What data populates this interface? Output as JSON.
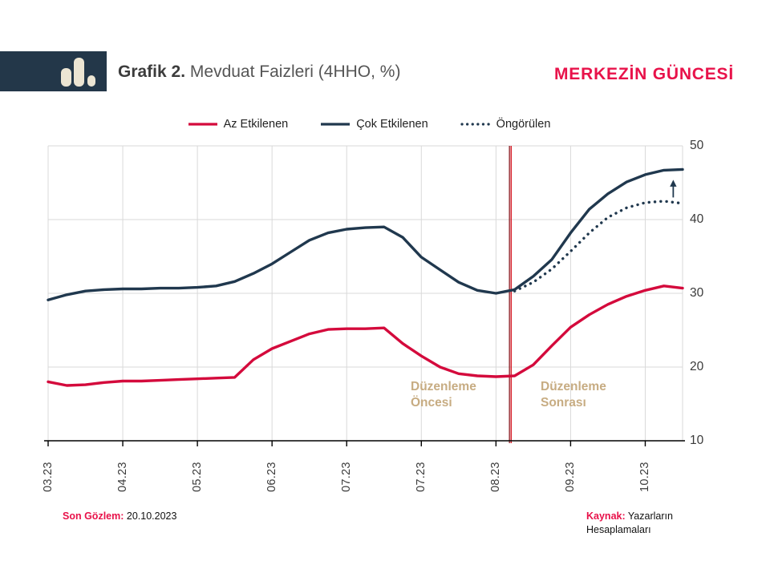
{
  "header": {
    "title_prefix": "Grafik 2.",
    "title_rest": "Mevduat Faizleri (4HHO, %)",
    "brand": "MERKEZİN GÜNCESİ",
    "brand_color": "#e8124a",
    "logo_icon": "bar-chart-icon",
    "logo_block_color": "#233749",
    "logo_icon_color": "#ece5d3"
  },
  "legend": {
    "items": [
      {
        "label": "Az Etkilenen",
        "swatch": "solid-red-line"
      },
      {
        "label": "Çok Etkilenen",
        "swatch": "solid-navy-line"
      },
      {
        "label": "Öngörülen",
        "swatch": "dotted-navy-line"
      }
    ]
  },
  "annotations": {
    "pre_label": "Düzenleme\nÖncesi",
    "post_label": "Düzenleme\nSonrası",
    "label_color": "#c7ac82"
  },
  "footer": {
    "last_obs_label": "Son Gözlem:",
    "last_obs_value": "20.10.2023",
    "source_label": "Kaynak:",
    "source_value": "Yazarların Hesaplamaları"
  },
  "chart_data": {
    "type": "line",
    "title": "Grafik 2. Mevduat Faizleri (4HHO, %)",
    "x_unit": "week",
    "x_tick_labels": [
      "03.23",
      "04.23",
      "05.23",
      "06.23",
      "07.23",
      "07.23",
      "08.23",
      "09.23",
      "10.23"
    ],
    "x_tick_weeks": [
      0,
      4,
      8,
      12,
      16,
      20,
      24,
      28,
      32
    ],
    "x_range_weeks": [
      0,
      34
    ],
    "ylim": [
      10,
      50
    ],
    "y_ticks": [
      10,
      20,
      30,
      40,
      50
    ],
    "grid": true,
    "legend_position": "top-center",
    "y_axis_side": "right",
    "series": [
      {
        "name": "Az Etkilenen",
        "style": "solid",
        "color": "#d40a3c",
        "start_week": 0,
        "values": [
          18.0,
          17.5,
          17.6,
          17.9,
          18.1,
          18.1,
          18.2,
          18.3,
          18.4,
          18.5,
          18.6,
          21.0,
          22.5,
          23.5,
          24.5,
          25.1,
          25.2,
          25.2,
          25.3,
          23.2,
          21.5,
          20.0,
          19.1,
          18.8,
          18.7,
          18.8,
          20.3,
          22.9,
          25.4,
          27.1,
          28.5,
          29.6,
          30.4,
          31.0,
          30.7
        ]
      },
      {
        "name": "Çok Etkilenen",
        "style": "solid",
        "color": "#20384e",
        "start_week": 0,
        "values": [
          29.1,
          29.8,
          30.3,
          30.5,
          30.6,
          30.6,
          30.7,
          30.7,
          30.8,
          31.0,
          31.6,
          32.7,
          34.0,
          35.6,
          37.2,
          38.2,
          38.7,
          38.9,
          39.0,
          37.6,
          34.9,
          33.2,
          31.5,
          30.4,
          30.0,
          30.5,
          32.3,
          34.6,
          38.2,
          41.4,
          43.5,
          45.1,
          46.1,
          46.7,
          46.8
        ]
      },
      {
        "name": "Öngörülen",
        "style": "dotted",
        "color": "#20384e",
        "start_week": 25,
        "values": [
          30.3,
          31.5,
          33.3,
          35.7,
          38.2,
          40.3,
          41.6,
          42.3,
          42.5,
          42.2
        ]
      }
    ],
    "vline": {
      "week": 24.77,
      "color": "#d41420",
      "meaning": "Düzenleme (regulation) date"
    },
    "arrow": {
      "week": 33.5,
      "from_value": 43.0,
      "to_value": 45.4,
      "color": "#20384e",
      "direction": "up"
    }
  }
}
